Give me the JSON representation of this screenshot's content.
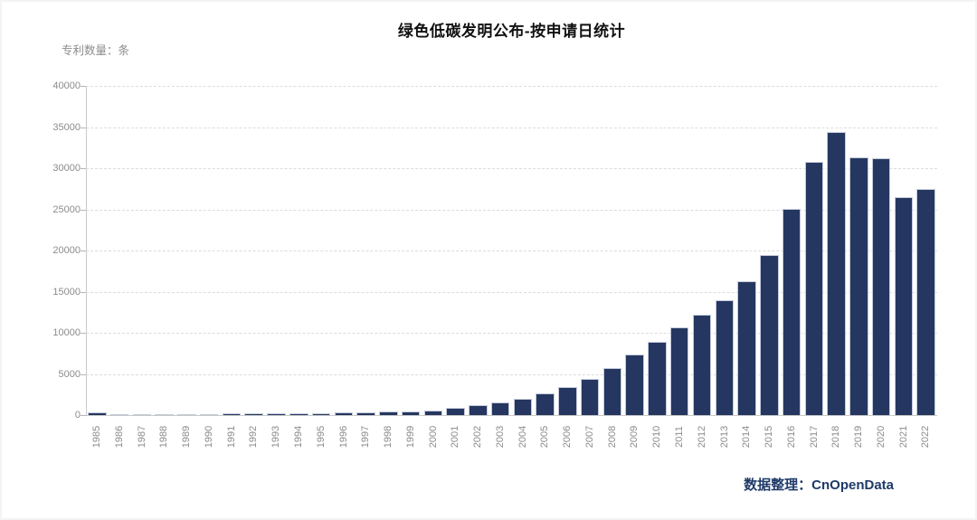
{
  "header": {
    "title": "绿色低碳发明公布-按申请日统计",
    "y_axis_unit_label": "专利数量：条"
  },
  "footer": {
    "credit": "数据整理：CnOpenData"
  },
  "colors": {
    "bar": "#253760",
    "bar_edge": "#c3cadb",
    "gridline": "#dcdcdc",
    "axis": "#c9c9c9",
    "tick_text": "#8c8c8c",
    "title_text": "#111111",
    "credit_text": "#1e3a68",
    "background": "#ffffff"
  },
  "chart_data": {
    "type": "bar",
    "title": "绿色低碳发明公布-按申请日统计",
    "xlabel": "",
    "ylabel": "专利数量：条",
    "source": "数据整理：CnOpenData",
    "categories": [
      "1985",
      "1986",
      "1987",
      "1988",
      "1989",
      "1990",
      "1991",
      "1992",
      "1993",
      "1994",
      "1995",
      "1996",
      "1997",
      "1998",
      "1999",
      "2000",
      "2001",
      "2002",
      "2003",
      "2004",
      "2005",
      "2006",
      "2007",
      "2008",
      "2009",
      "2010",
      "2011",
      "2012",
      "2013",
      "2014",
      "2015",
      "2016",
      "2017",
      "2018",
      "2019",
      "2020",
      "2021",
      "2022"
    ],
    "values": [
      280,
      80,
      140,
      150,
      150,
      120,
      190,
      210,
      270,
      260,
      260,
      310,
      350,
      430,
      470,
      590,
      920,
      1160,
      1560,
      2000,
      2620,
      3450,
      4450,
      5700,
      7350,
      8870,
      10630,
      12210,
      13970,
      16260,
      19500,
      25050,
      30750,
      34450,
      31350,
      31170,
      26450,
      27430
    ],
    "ylim": [
      0,
      40000
    ],
    "yticks": [
      0,
      5000,
      10000,
      15000,
      20000,
      25000,
      30000,
      35000,
      40000
    ],
    "grid": "horizontal-dashed",
    "legend_position": "none",
    "bar_orientation": "vertical"
  }
}
